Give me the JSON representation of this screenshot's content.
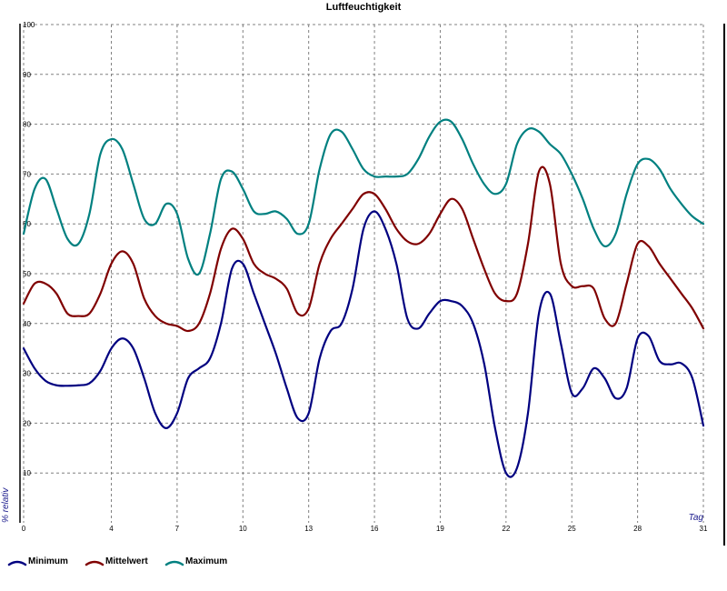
{
  "chart_data": {
    "type": "line",
    "title": "Luftfeuchtigkeit",
    "xlabel": "Tag",
    "ylabel": "% relativ",
    "xlim": [
      0,
      31
    ],
    "ylim": [
      0,
      100
    ],
    "x_ticks": [
      "0",
      "4",
      "7",
      "10",
      "13",
      "16",
      "19",
      "22",
      "25",
      "28",
      "31"
    ],
    "y_ticks": [
      "10",
      "20",
      "30",
      "40",
      "50",
      "60",
      "70",
      "80",
      "90",
      "100"
    ],
    "grid": true,
    "legend_position": "bottom-left",
    "series": [
      {
        "name": "Minimum",
        "color": "#000080",
        "points": [
          [
            0,
            35
          ],
          [
            0.5,
            31
          ],
          [
            1,
            28.5
          ],
          [
            1.5,
            27.6
          ],
          [
            2,
            27.5
          ],
          [
            2.5,
            27.6
          ],
          [
            3,
            28
          ],
          [
            3.5,
            30.5
          ],
          [
            4,
            35
          ],
          [
            4.5,
            37
          ],
          [
            5,
            35
          ],
          [
            5.5,
            29
          ],
          [
            6,
            22
          ],
          [
            6.5,
            19
          ],
          [
            7,
            22
          ],
          [
            7.5,
            29
          ],
          [
            8,
            31
          ],
          [
            8.5,
            33
          ],
          [
            9,
            40
          ],
          [
            9.5,
            51
          ],
          [
            10,
            52
          ],
          [
            10.5,
            46
          ],
          [
            11,
            40
          ],
          [
            11.5,
            34
          ],
          [
            12,
            27
          ],
          [
            12.5,
            21
          ],
          [
            13,
            22
          ],
          [
            13.5,
            33
          ],
          [
            14,
            38.5
          ],
          [
            14.5,
            40
          ],
          [
            15,
            47
          ],
          [
            15.5,
            59
          ],
          [
            16,
            62.5
          ],
          [
            16.5,
            59
          ],
          [
            17,
            52
          ],
          [
            17.5,
            41
          ],
          [
            18,
            39
          ],
          [
            18.5,
            42
          ],
          [
            19,
            44.5
          ],
          [
            19.5,
            44.5
          ],
          [
            20,
            43.5
          ],
          [
            20.5,
            40
          ],
          [
            21,
            32
          ],
          [
            21.5,
            19
          ],
          [
            22,
            10
          ],
          [
            22.5,
            11
          ],
          [
            23,
            22
          ],
          [
            23.5,
            42
          ],
          [
            24,
            46
          ],
          [
            24.5,
            36
          ],
          [
            25,
            26
          ],
          [
            25.5,
            27
          ],
          [
            26,
            31
          ],
          [
            26.5,
            29
          ],
          [
            27,
            25
          ],
          [
            27.5,
            27
          ],
          [
            28,
            37
          ],
          [
            28.5,
            37.5
          ],
          [
            29,
            32.5
          ],
          [
            29.5,
            31.8
          ],
          [
            30,
            32
          ],
          [
            30.5,
            29
          ],
          [
            31,
            19.5
          ]
        ]
      },
      {
        "name": "Mittelwert",
        "color": "#800000",
        "points": [
          [
            0,
            44
          ],
          [
            0.5,
            48
          ],
          [
            1,
            48
          ],
          [
            1.5,
            46
          ],
          [
            2,
            42
          ],
          [
            2.5,
            41.5
          ],
          [
            3,
            42
          ],
          [
            3.5,
            46
          ],
          [
            4,
            52
          ],
          [
            4.5,
            54.5
          ],
          [
            5,
            52
          ],
          [
            5.5,
            45
          ],
          [
            6,
            41.5
          ],
          [
            6.5,
            40
          ],
          [
            7,
            39.5
          ],
          [
            7.5,
            38.5
          ],
          [
            8,
            40
          ],
          [
            8.5,
            46
          ],
          [
            9,
            55
          ],
          [
            9.5,
            59
          ],
          [
            10,
            57
          ],
          [
            10.5,
            52
          ],
          [
            11,
            50
          ],
          [
            11.5,
            49
          ],
          [
            12,
            47
          ],
          [
            12.5,
            42
          ],
          [
            13,
            43
          ],
          [
            13.5,
            52
          ],
          [
            14,
            57
          ],
          [
            14.5,
            60
          ],
          [
            15,
            63
          ],
          [
            15.5,
            66
          ],
          [
            16,
            66
          ],
          [
            16.5,
            63
          ],
          [
            17,
            59
          ],
          [
            17.5,
            56.5
          ],
          [
            18,
            56
          ],
          [
            18.5,
            58
          ],
          [
            19,
            62
          ],
          [
            19.5,
            65
          ],
          [
            20,
            63
          ],
          [
            20.5,
            57
          ],
          [
            21,
            51
          ],
          [
            21.5,
            46
          ],
          [
            22,
            44.5
          ],
          [
            22.5,
            46
          ],
          [
            23,
            56
          ],
          [
            23.5,
            70.5
          ],
          [
            24,
            68
          ],
          [
            24.5,
            52
          ],
          [
            25,
            47.5
          ],
          [
            25.5,
            47.5
          ],
          [
            26,
            47
          ],
          [
            26.5,
            41
          ],
          [
            27,
            40
          ],
          [
            27.5,
            48
          ],
          [
            28,
            56
          ],
          [
            28.5,
            55.5
          ],
          [
            29,
            52
          ],
          [
            29.5,
            49
          ],
          [
            30,
            46
          ],
          [
            30.5,
            43
          ],
          [
            31,
            39
          ]
        ]
      },
      {
        "name": "Maximum",
        "color": "#008080",
        "points": [
          [
            0,
            58
          ],
          [
            0.5,
            67
          ],
          [
            1,
            69
          ],
          [
            1.5,
            63
          ],
          [
            2,
            57
          ],
          [
            2.5,
            56
          ],
          [
            3,
            62
          ],
          [
            3.5,
            74
          ],
          [
            4,
            77
          ],
          [
            4.5,
            75
          ],
          [
            5,
            68
          ],
          [
            5.5,
            61
          ],
          [
            6,
            60
          ],
          [
            6.5,
            64
          ],
          [
            7,
            62
          ],
          [
            7.5,
            53
          ],
          [
            8,
            50
          ],
          [
            8.5,
            58
          ],
          [
            9,
            69
          ],
          [
            9.5,
            70.5
          ],
          [
            10,
            67
          ],
          [
            10.5,
            62.5
          ],
          [
            11,
            62
          ],
          [
            11.5,
            62.5
          ],
          [
            12,
            61
          ],
          [
            12.5,
            58
          ],
          [
            13,
            60
          ],
          [
            13.5,
            71
          ],
          [
            14,
            78
          ],
          [
            14.5,
            78.5
          ],
          [
            15,
            75
          ],
          [
            15.5,
            71
          ],
          [
            16,
            69.5
          ],
          [
            16.5,
            69.5
          ],
          [
            17,
            69.5
          ],
          [
            17.5,
            70
          ],
          [
            18,
            73
          ],
          [
            18.5,
            77.5
          ],
          [
            19,
            80.5
          ],
          [
            19.5,
            80.5
          ],
          [
            20,
            77
          ],
          [
            20.5,
            72
          ],
          [
            21,
            68
          ],
          [
            21.5,
            66
          ],
          [
            22,
            68
          ],
          [
            22.5,
            76
          ],
          [
            23,
            79
          ],
          [
            23.5,
            78.5
          ],
          [
            24,
            76
          ],
          [
            24.5,
            74
          ],
          [
            25,
            70
          ],
          [
            25.5,
            65
          ],
          [
            26,
            59
          ],
          [
            26.5,
            55.5
          ],
          [
            27,
            58
          ],
          [
            27.5,
            66
          ],
          [
            28,
            72
          ],
          [
            28.5,
            73
          ],
          [
            29,
            71
          ],
          [
            29.5,
            67
          ],
          [
            30,
            64
          ],
          [
            30.5,
            61.5
          ],
          [
            31,
            60
          ]
        ]
      }
    ]
  }
}
